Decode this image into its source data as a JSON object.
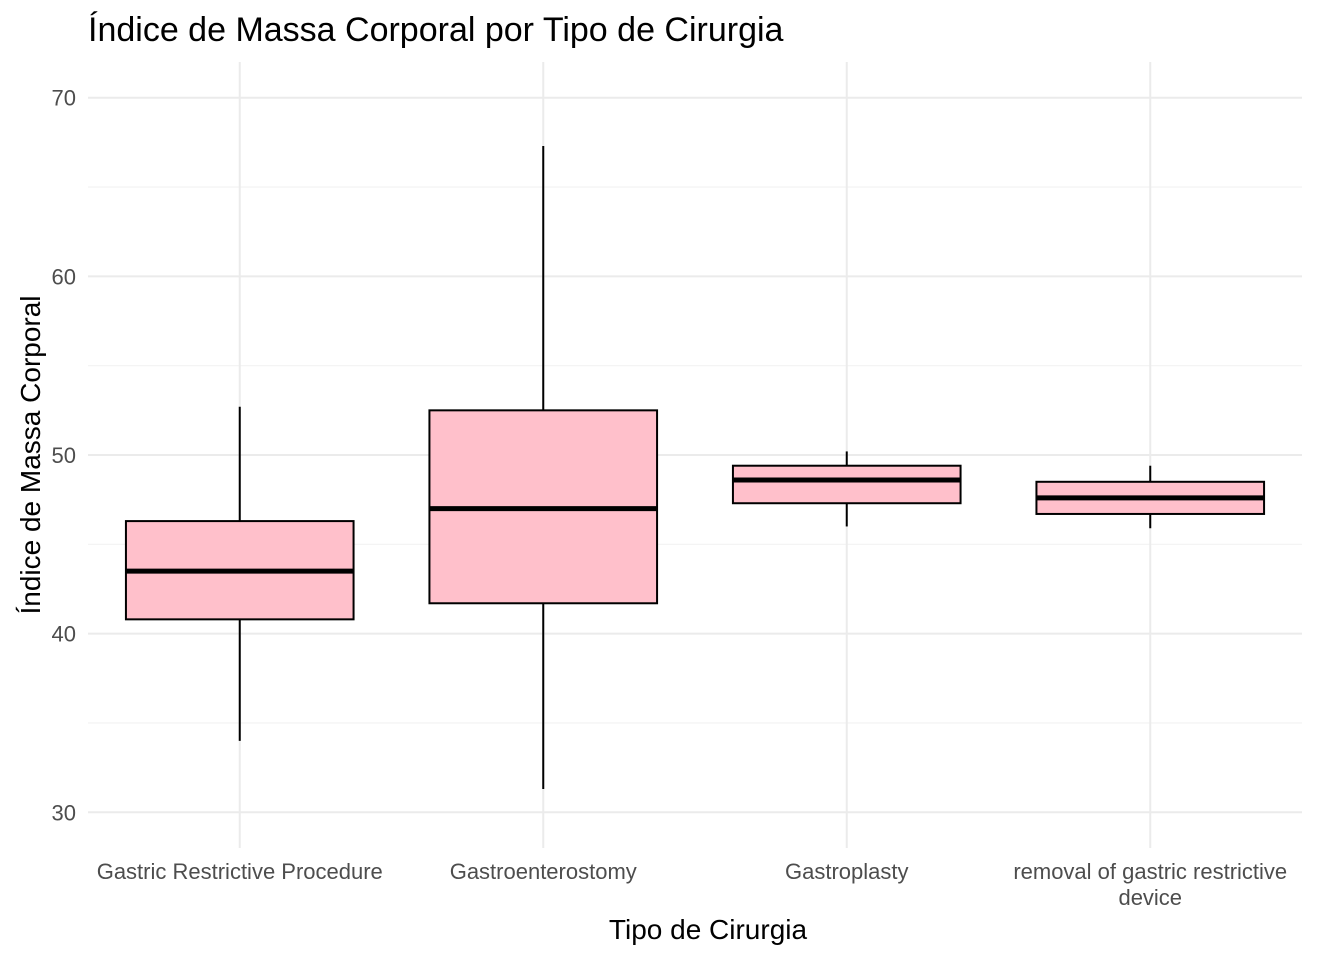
{
  "chart_data": {
    "type": "boxplot",
    "title": "Índice de Massa Corporal por Tipo de Cirurgia",
    "xlabel": "Tipo de Cirurgia",
    "ylabel": "Índice de Massa Corporal",
    "ylim": [
      28,
      72
    ],
    "yticks": [
      30,
      40,
      50,
      60,
      70
    ],
    "grid": true,
    "box_fill": "#ffc0cb",
    "box_stroke": "#000000",
    "categories": [
      [
        "Gastric Restrictive Procedure"
      ],
      [
        "Gastroenterostomy"
      ],
      [
        "Gastroplasty"
      ],
      [
        "removal of gastric restrictive",
        "device"
      ]
    ],
    "boxes": [
      {
        "whisker_low": 34.0,
        "q1": 40.8,
        "median": 43.5,
        "q3": 46.3,
        "whisker_high": 52.7
      },
      {
        "whisker_low": 31.3,
        "q1": 41.7,
        "median": 47.0,
        "q3": 52.5,
        "whisker_high": 67.3
      },
      {
        "whisker_low": 46.0,
        "q1": 47.3,
        "median": 48.6,
        "q3": 49.4,
        "whisker_high": 50.2
      },
      {
        "whisker_low": 45.9,
        "q1": 46.7,
        "median": 47.6,
        "q3": 48.5,
        "whisker_high": 49.4
      }
    ]
  }
}
